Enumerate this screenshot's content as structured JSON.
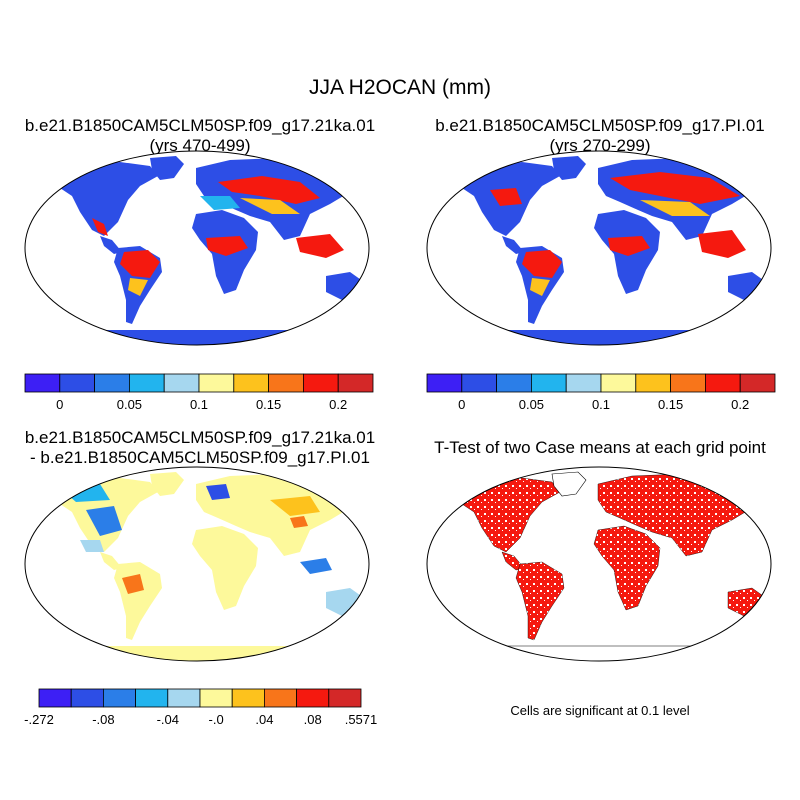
{
  "figure": {
    "title": "JJA H2OCAN (mm)"
  },
  "panels": [
    {
      "title_line1": "b.e21.B1850CAM5CLM50SP.f09_g17.21ka.01",
      "title_line2": "(yrs 470-499)"
    },
    {
      "title_line1": "b.e21.B1850CAM5CLM50SP.f09_g17.PI.01",
      "title_line2": "(yrs 270-299)"
    },
    {
      "title_line1": "b.e21.B1850CAM5CLM50SP.f09_g17.21ka.01",
      "title_line2": "- b.e21.B1850CAM5CLM50SP.f09_g17.PI.01"
    },
    {
      "title_line1": "T-Test of two Case means at each grid point",
      "title_line2": ""
    }
  ],
  "colorbars": {
    "absolute": {
      "colors": [
        "#3d1ff5",
        "#2d4ee6",
        "#2b7ee8",
        "#22b4ee",
        "#a6d7ef",
        "#fdf99b",
        "#fdc21d",
        "#f8751a",
        "#f5190f",
        "#d42828"
      ],
      "labels": [
        "0",
        "0.05",
        "0.1",
        "0.15",
        "0.2"
      ]
    },
    "difference": {
      "colors": [
        "#3d1ff5",
        "#2d4ee6",
        "#2b7ee8",
        "#22b4ee",
        "#a6d7ef",
        "#fdf99b",
        "#fdc21d",
        "#f8751a",
        "#f5190f",
        "#d42828"
      ],
      "labels": [
        "-.272",
        "-.08",
        "-.04",
        "-.0",
        ".04",
        ".08",
        ".5571"
      ]
    }
  },
  "significance_note": "Cells are significant at 0.1 level",
  "map_colors": {
    "ocean": "#ffffff",
    "land_abs": "#2d4ee6",
    "land_diff": "#fdf99b",
    "significant": "#f5190f"
  }
}
